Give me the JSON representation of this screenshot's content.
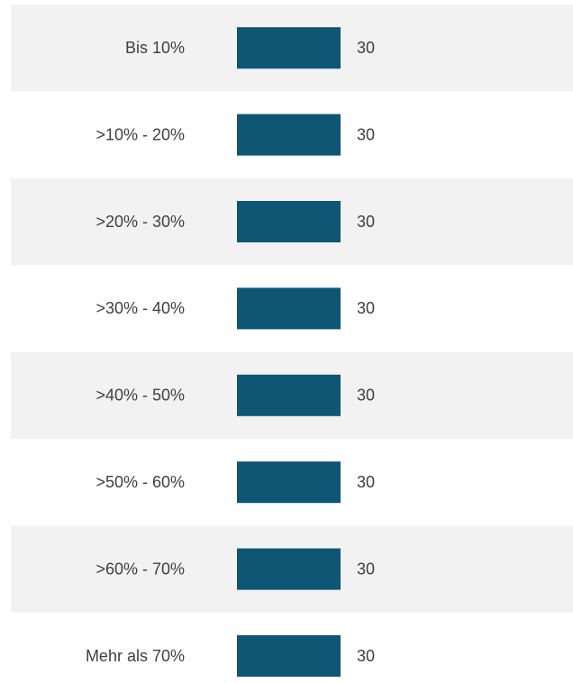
{
  "chart_data": {
    "type": "bar",
    "orientation": "horizontal",
    "categories": [
      "Bis 10%",
      ">10% - 20%",
      ">20% - 30%",
      ">30% - 40%",
      ">40% - 50%",
      ">50% - 60%",
      ">60% - 70%",
      "Mehr als 70%"
    ],
    "values": [
      30,
      30,
      30,
      30,
      30,
      30,
      30,
      30
    ],
    "color": "#0e5673"
  }
}
